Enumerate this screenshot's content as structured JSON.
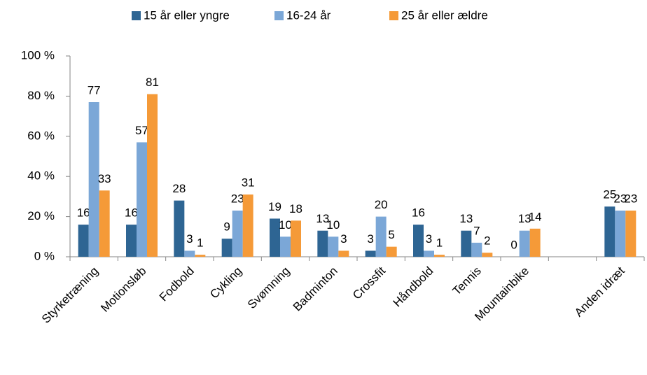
{
  "chart_data": {
    "type": "bar",
    "categories": [
      "Styrketræning",
      "Motionsløb",
      "Fodbold",
      "Cykling",
      "Svømning",
      "Badminton",
      "Crossfit",
      "Håndbold",
      "Tennis",
      "Mountainbike",
      null,
      "Anden idræt"
    ],
    "series": [
      {
        "name": "15 år eller yngre",
        "color": "#2e6593",
        "values": [
          16,
          16,
          28,
          9,
          19,
          13,
          3,
          16,
          13,
          0,
          null,
          25
        ]
      },
      {
        "name": "16-24 år",
        "color": "#7ba7d7",
        "values": [
          77,
          57,
          3,
          23,
          10,
          10,
          20,
          3,
          7,
          13,
          null,
          23
        ]
      },
      {
        "name": "25 år eller ældre",
        "color": "#f59a38",
        "values": [
          33,
          81,
          1,
          31,
          18,
          3,
          5,
          1,
          2,
          14,
          null,
          23
        ]
      }
    ],
    "ylim": [
      0,
      100
    ],
    "yticks": [
      {
        "value": 0,
        "label": "0 %"
      },
      {
        "value": 20,
        "label": "20 %"
      },
      {
        "value": 40,
        "label": "40 %"
      },
      {
        "value": 60,
        "label": "60 %"
      },
      {
        "value": 80,
        "label": "80 %"
      },
      {
        "value": 100,
        "label": "100 %"
      }
    ],
    "legend": "top"
  }
}
